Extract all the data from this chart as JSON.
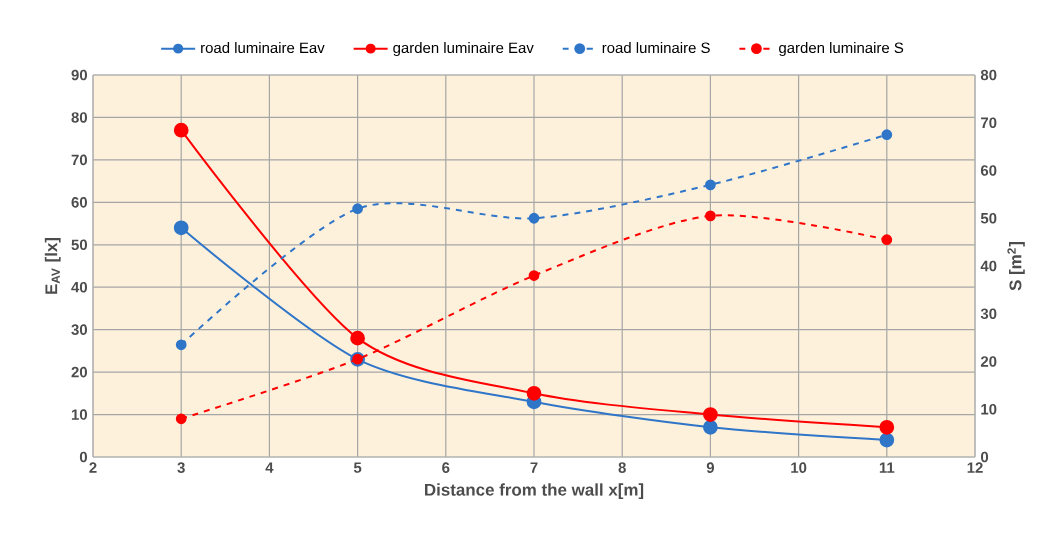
{
  "chart_data": {
    "type": "line",
    "xlabel": "Distance from the wall x[m]",
    "ylabel": "E$_{AV}$ [lx]",
    "y2label": "S [m$^{2}$]",
    "x": [
      3,
      5,
      7,
      9,
      11
    ],
    "series": [
      {
        "name": "road luminaire Eav",
        "color": "#2f75c8",
        "values": [
          54,
          23,
          13,
          7,
          4
        ],
        "line_style": "solid"
      },
      {
        "name": "garden luminaire Eav",
        "color": "#ff0000",
        "values": [
          77,
          28,
          15,
          10,
          7
        ],
        "line_style": "solid"
      },
      {
        "name": "road luminaire S",
        "color": "#2f75c8",
        "values": [
          23.5,
          52,
          50,
          57,
          67.5
        ],
        "line_style": "dashed",
        "axis": "y2"
      },
      {
        "name": "garden luminaire S",
        "color": "#ff0000",
        "values": [
          8,
          20.5,
          38,
          50.5,
          45.5
        ],
        "line_style": "dashed",
        "axis": "y2"
      }
    ],
    "xlim": [
      2,
      12
    ],
    "xticks": [
      2,
      3,
      4,
      5,
      6,
      7,
      8,
      9,
      10,
      11,
      12
    ],
    "ylim": [
      0,
      90
    ],
    "yticks": [
      0,
      10,
      20,
      30,
      40,
      50,
      60,
      70,
      80,
      90
    ],
    "y2lim": [
      0,
      80
    ],
    "y2ticks": [
      0,
      10,
      20,
      30,
      40,
      50,
      60,
      70,
      80
    ],
    "grid": true,
    "legend": "top",
    "marker": "circle"
  }
}
